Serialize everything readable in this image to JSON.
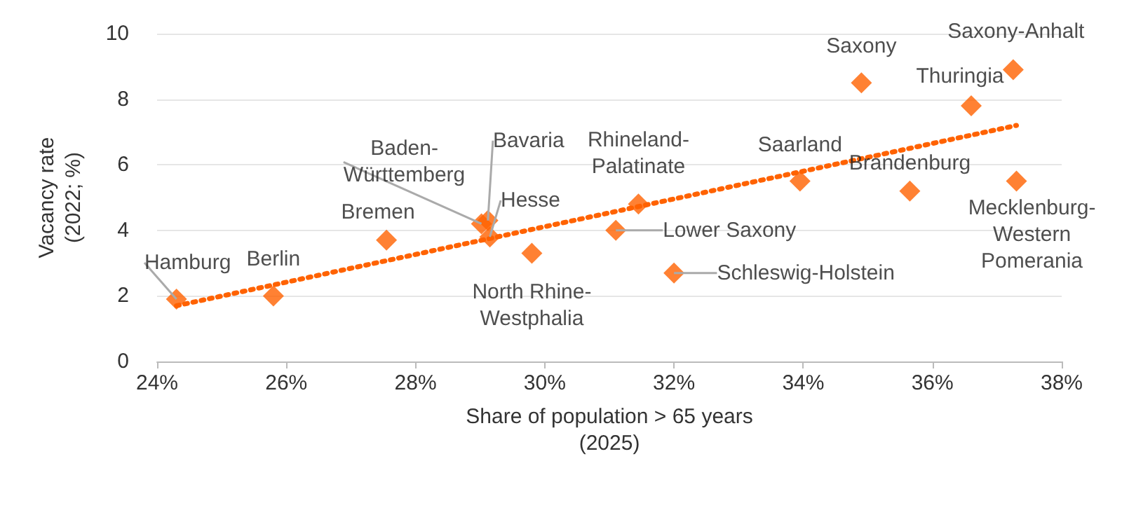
{
  "chart_data": {
    "type": "scatter",
    "xlabel": "Share of population > 65 years\n(2025)",
    "ylabel": "Vacancy rate\n(2022; %)",
    "xlim": [
      24,
      38
    ],
    "xticks": [
      {
        "value": 24,
        "label": "24%"
      },
      {
        "value": 26,
        "label": "26%"
      },
      {
        "value": 28,
        "label": "28%"
      },
      {
        "value": 30,
        "label": "30%"
      },
      {
        "value": 32,
        "label": "32%"
      },
      {
        "value": 34,
        "label": "34%"
      },
      {
        "value": 36,
        "label": "36%"
      },
      {
        "value": 38,
        "label": "38%"
      }
    ],
    "ylim": [
      0,
      10
    ],
    "yticks": [
      0,
      2,
      4,
      6,
      8,
      10
    ],
    "grid": "y",
    "series": [
      {
        "color": "#ff6200",
        "marker": "diamond",
        "x": [
          24.3,
          25.8,
          27.55,
          29.02,
          29.12,
          29.15,
          29.8,
          31.45,
          31.1,
          32.0,
          33.95,
          34.9,
          35.65,
          36.6,
          37.25,
          37.3
        ],
        "values": [
          1.9,
          2.0,
          3.7,
          4.2,
          4.3,
          3.8,
          3.3,
          4.8,
          4.0,
          2.7,
          5.5,
          8.5,
          5.2,
          7.8,
          8.9,
          5.5
        ]
      },
      {
        "type": "line",
        "color": "#ff6200",
        "line_style": "dotted",
        "marker": "none",
        "x": [
          24.3,
          37.3
        ],
        "values": [
          1.7,
          7.2
        ]
      }
    ],
    "annotations": [
      {
        "text": "Hamburg",
        "x": 24.3,
        "y": 1.9
      },
      {
        "text": "Berlin",
        "x": 25.8,
        "y": 2.0
      },
      {
        "text": "Bremen",
        "x": 27.55,
        "y": 3.7
      },
      {
        "text": "Baden-\nWürttemberg",
        "x": 29.02,
        "y": 4.2
      },
      {
        "text": "Bavaria",
        "x": 29.12,
        "y": 4.3
      },
      {
        "text": "Hesse",
        "x": 29.15,
        "y": 3.8
      },
      {
        "text": "North Rhine-\nWestphalia",
        "x": 29.8,
        "y": 3.3
      },
      {
        "text": "Rhineland-\nPalatinate",
        "x": 31.45,
        "y": 4.8
      },
      {
        "text": "Lower Saxony",
        "x": 31.1,
        "y": 4.0
      },
      {
        "text": "Schleswig-Holstein",
        "x": 32.0,
        "y": 2.7
      },
      {
        "text": "Saarland",
        "x": 33.95,
        "y": 5.5
      },
      {
        "text": "Saxony",
        "x": 34.9,
        "y": 8.5
      },
      {
        "text": "Brandenburg",
        "x": 35.65,
        "y": 5.2
      },
      {
        "text": "Thuringia",
        "x": 36.6,
        "y": 7.8
      },
      {
        "text": "Saxony-Anhalt",
        "x": 37.25,
        "y": 8.9
      },
      {
        "text": "Mecklenburg-\nWestern\nPomerania",
        "x": 37.3,
        "y": 5.5
      }
    ]
  }
}
